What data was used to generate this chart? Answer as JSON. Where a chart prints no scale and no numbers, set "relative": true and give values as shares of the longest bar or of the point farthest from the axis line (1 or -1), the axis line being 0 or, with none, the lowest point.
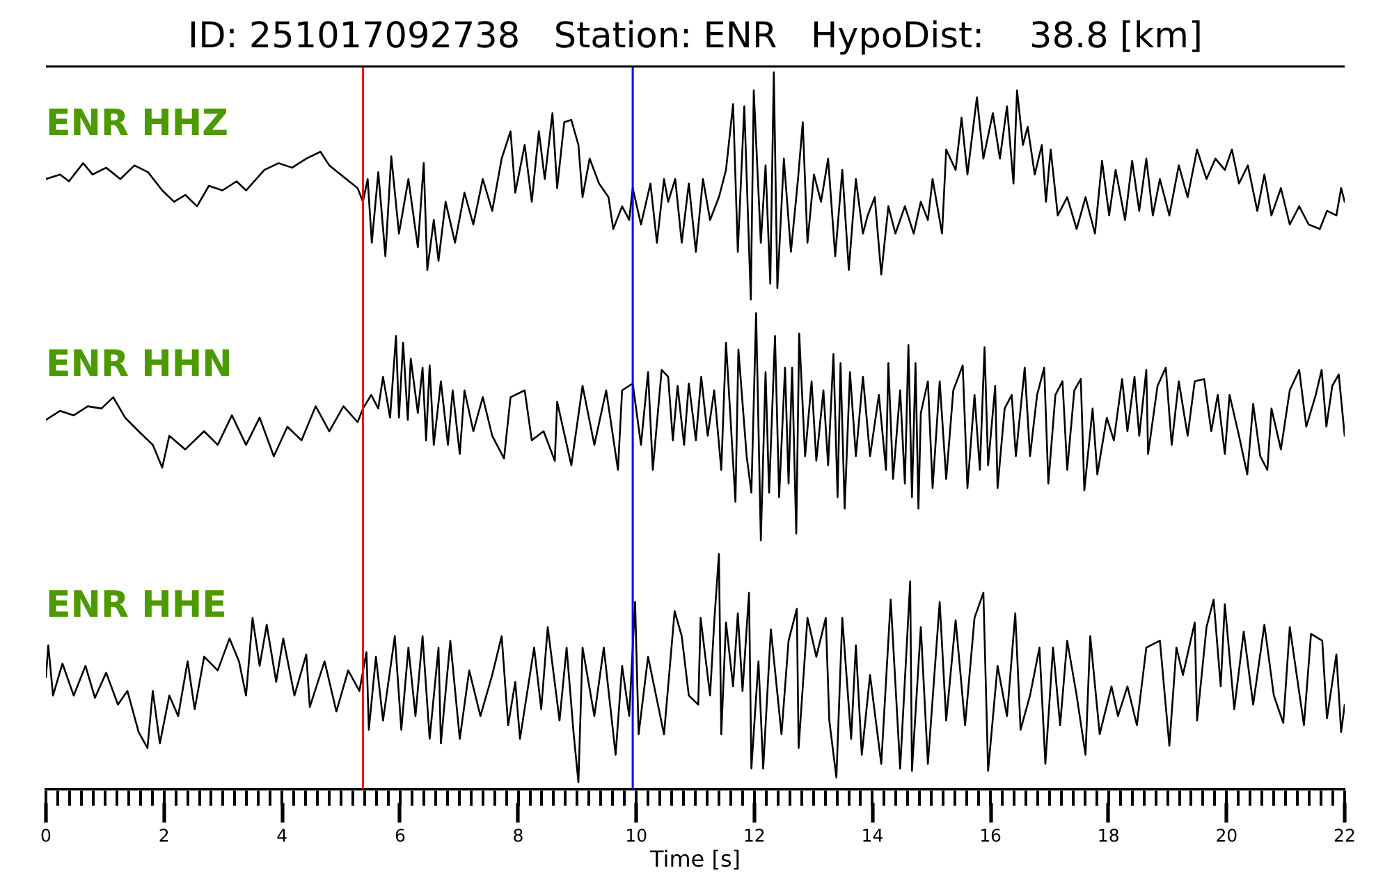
{
  "chart_data": [
    {
      "type": "line",
      "title": "ID: 251017092738   Station: ENR   HypoDist:    38.8 [km]",
      "relative": true,
      "tick_labels": false,
      "xlim": [
        0,
        22
      ],
      "x": [
        0,
        0.24,
        0.39,
        0.63,
        0.79,
        1.02,
        1.26,
        1.5,
        1.73,
        1.97,
        2.17,
        2.36,
        2.56,
        2.76,
        2.99,
        3.23,
        3.39,
        3.7,
        3.94,
        4.17,
        4.41,
        4.65,
        4.8,
        5.04,
        5.28,
        5.37,
        5.45,
        5.52,
        5.63,
        5.75,
        5.85,
        5.98,
        6.14,
        6.3,
        6.4,
        6.46,
        6.57,
        6.65,
        6.77,
        6.93,
        7.09,
        7.24,
        7.4,
        7.56,
        7.72,
        7.87,
        7.95,
        8.11,
        8.23,
        8.35,
        8.45,
        8.58,
        8.66,
        8.78,
        8.9,
        9.02,
        9.09,
        9.21,
        9.37,
        9.53,
        9.61,
        9.76,
        9.88,
        9.94,
        10.08,
        10.24,
        10.35,
        10.47,
        10.54,
        10.66,
        10.77,
        10.89,
        11.01,
        11.13,
        11.25,
        11.4,
        11.52,
        11.64,
        11.72,
        11.83,
        11.94,
        11.99,
        12.11,
        12.19,
        12.27,
        12.33,
        12.39,
        12.5,
        12.62,
        12.74,
        12.82,
        12.9,
        13.01,
        13.13,
        13.25,
        13.37,
        13.49,
        13.6,
        13.72,
        13.84,
        13.92,
        14.04,
        14.15,
        14.27,
        14.39,
        14.55,
        14.7,
        14.82,
        14.94,
        15.02,
        15.18,
        15.25,
        15.41,
        15.51,
        15.61,
        15.77,
        15.88,
        16.04,
        16.16,
        16.28,
        16.39,
        16.45,
        16.55,
        16.63,
        16.75,
        16.87,
        16.94,
        17.02,
        17.14,
        17.3,
        17.46,
        17.61,
        17.77,
        17.89,
        18.01,
        18.12,
        18.28,
        18.4,
        18.52,
        18.64,
        18.75,
        18.87,
        19.03,
        19.19,
        19.34,
        19.5,
        19.66,
        19.81,
        19.97,
        20.09,
        20.21,
        20.36,
        20.52,
        20.64,
        20.76,
        20.92,
        21.07,
        21.23,
        21.39,
        21.58,
        21.7,
        21.86,
        21.94,
        22
      ],
      "series": [
        {
          "name": "ENR HHZ",
          "color": "#000000",
          "values": [
            0.53,
            0.55,
            0.52,
            0.6,
            0.55,
            0.58,
            0.53,
            0.59,
            0.56,
            0.48,
            0.43,
            0.46,
            0.41,
            0.5,
            0.48,
            0.52,
            0.48,
            0.57,
            0.6,
            0.58,
            0.62,
            0.65,
            0.59,
            0.54,
            0.49,
            0.43,
            0.53,
            0.25,
            0.56,
            0.19,
            0.63,
            0.29,
            0.53,
            0.23,
            0.6,
            0.13,
            0.35,
            0.17,
            0.43,
            0.25,
            0.47,
            0.33,
            0.53,
            0.39,
            0.62,
            0.74,
            0.47,
            0.68,
            0.43,
            0.74,
            0.53,
            0.82,
            0.49,
            0.78,
            0.79,
            0.68,
            0.45,
            0.62,
            0.51,
            0.45,
            0.31,
            0.41,
            0.35,
            0.49,
            0.33,
            0.51,
            0.25,
            0.53,
            0.43,
            0.53,
            0.25,
            0.51,
            0.21,
            0.53,
            0.35,
            0.45,
            0.57,
            0.86,
            0.21,
            0.85,
            0,
            0.92,
            0.25,
            0.59,
            0.07,
            1,
            0.05,
            0.62,
            0.21,
            0.53,
            0.78,
            0.25,
            0.55,
            0.43,
            0.62,
            0.19,
            0.57,
            0.13,
            0.53,
            0.29,
            0.37,
            0.45,
            0.11,
            0.41,
            0.29,
            0.41,
            0.29,
            0.43,
            0.35,
            0.53,
            0.29,
            0.66,
            0.57,
            0.8,
            0.55,
            0.89,
            0.62,
            0.82,
            0.62,
            0.85,
            0.51,
            0.92,
            0.68,
            0.76,
            0.55,
            0.68,
            0.43,
            0.66,
            0.37,
            0.45,
            0.31,
            0.45,
            0.29,
            0.61,
            0.37,
            0.57,
            0.35,
            0.61,
            0.39,
            0.62,
            0.37,
            0.53,
            0.37,
            0.59,
            0.45,
            0.66,
            0.53,
            0.62,
            0.57,
            0.66,
            0.51,
            0.59,
            0.39,
            0.55,
            0.37,
            0.49,
            0.33,
            0.41,
            0.33,
            0.31,
            0.39,
            0.37,
            0.49,
            0.43
          ]
        }
      ],
      "ref_lines": [
        {
          "axis": "x",
          "value": 5.37,
          "color": "#ff0000"
        },
        {
          "axis": "x",
          "value": 9.94,
          "color": "#0000ff"
        }
      ]
    },
    {
      "type": "line",
      "relative": true,
      "tick_labels": false,
      "xlim": [
        0,
        22
      ],
      "x": [
        0,
        0.24,
        0.47,
        0.71,
        0.94,
        1.14,
        1.34,
        1.57,
        1.81,
        1.97,
        2.09,
        2.36,
        2.68,
        2.91,
        3.15,
        3.39,
        3.62,
        3.86,
        4.09,
        4.33,
        4.57,
        4.8,
        5.04,
        5.28,
        5.37,
        5.51,
        5.63,
        5.71,
        5.83,
        5.93,
        5.98,
        6.05,
        6.13,
        6.18,
        6.3,
        6.38,
        6.44,
        6.5,
        6.57,
        6.69,
        6.81,
        6.89,
        7.01,
        7.09,
        7.24,
        7.4,
        7.56,
        7.76,
        7.87,
        8.11,
        8.23,
        8.43,
        8.62,
        8.66,
        8.9,
        9.09,
        9.29,
        9.49,
        9.69,
        9.76,
        9.94,
        10.08,
        10.2,
        10.28,
        10.43,
        10.54,
        10.62,
        10.7,
        10.81,
        10.89,
        11.01,
        11.1,
        11.21,
        11.32,
        11.44,
        11.52,
        11.68,
        11.73,
        11.87,
        11.95,
        12.03,
        12.11,
        12.19,
        12.25,
        12.35,
        12.42,
        12.52,
        12.58,
        12.64,
        12.71,
        12.76,
        12.86,
        12.97,
        13.05,
        13.17,
        13.25,
        13.34,
        13.41,
        13.46,
        13.53,
        13.62,
        13.72,
        13.84,
        13.96,
        14.11,
        14.23,
        14.27,
        14.35,
        14.47,
        14.55,
        14.61,
        14.67,
        14.73,
        14.78,
        14.82,
        14.94,
        15.02,
        15.14,
        15.25,
        15.37,
        15.53,
        15.61,
        15.73,
        15.82,
        15.9,
        15.96,
        16.08,
        16.12,
        16.24,
        16.36,
        16.43,
        16.58,
        16.67,
        16.79,
        16.91,
        16.98,
        17.1,
        17.22,
        17.3,
        17.42,
        17.53,
        17.59,
        17.73,
        17.81,
        17.97,
        18.09,
        18.23,
        18.32,
        18.44,
        18.52,
        18.64,
        18.67,
        18.83,
        18.97,
        19.07,
        19.19,
        19.34,
        19.46,
        19.62,
        19.74,
        19.85,
        19.97,
        20.05,
        20.21,
        20.35,
        20.45,
        20.57,
        20.69,
        20.76,
        20.92,
        21.07,
        21.23,
        21.35,
        21.51,
        21.61,
        21.69,
        21.79,
        21.9,
        22
      ],
      "series": [
        {
          "name": "ENR HHN",
          "color": "#000000",
          "values": [
            0.53,
            0.57,
            0.55,
            0.59,
            0.58,
            0.63,
            0.54,
            0.48,
            0.42,
            0.32,
            0.46,
            0.4,
            0.48,
            0.42,
            0.55,
            0.42,
            0.54,
            0.37,
            0.5,
            0.44,
            0.59,
            0.48,
            0.59,
            0.52,
            0.58,
            0.64,
            0.58,
            0.72,
            0.54,
            0.9,
            0.54,
            0.87,
            0.53,
            0.8,
            0.56,
            0.76,
            0.44,
            0.77,
            0.42,
            0.7,
            0.42,
            0.66,
            0.38,
            0.66,
            0.48,
            0.63,
            0.46,
            0.36,
            0.63,
            0.66,
            0.44,
            0.48,
            0.35,
            0.61,
            0.33,
            0.68,
            0.42,
            0.66,
            0.31,
            0.66,
            0.69,
            0.42,
            0.74,
            0.31,
            0.75,
            0.72,
            0.44,
            0.68,
            0.42,
            0.69,
            0.44,
            0.72,
            0.46,
            0.66,
            0.31,
            0.87,
            0.17,
            0.84,
            0.37,
            0.21,
            1,
            0,
            0.74,
            0.21,
            0.9,
            0.19,
            0.76,
            0.25,
            0.76,
            0.03,
            0.91,
            0.37,
            0.7,
            0.35,
            0.66,
            0.33,
            0.82,
            0.19,
            0.78,
            0.14,
            0.74,
            0.37,
            0.72,
            0.37,
            0.64,
            0.31,
            0.78,
            0.27,
            0.66,
            0.25,
            0.86,
            0.19,
            0.78,
            0.14,
            0.56,
            0.7,
            0.23,
            0.7,
            0.27,
            0.66,
            0.77,
            0.23,
            0.64,
            0.31,
            0.85,
            0.33,
            0.68,
            0.23,
            0.58,
            0.64,
            0.37,
            0.76,
            0.37,
            0.64,
            0.76,
            0.25,
            0.64,
            0.7,
            0.31,
            0.66,
            0.71,
            0.22,
            0.58,
            0.29,
            0.54,
            0.44,
            0.71,
            0.48,
            0.72,
            0.46,
            0.75,
            0.38,
            0.68,
            0.76,
            0.42,
            0.7,
            0.46,
            0.7,
            0.71,
            0.48,
            0.64,
            0.38,
            0.64,
            0.46,
            0.29,
            0.6,
            0.37,
            0.31,
            0.58,
            0.4,
            0.66,
            0.75,
            0.5,
            0.64,
            0.75,
            0.5,
            0.68,
            0.73,
            0.46
          ]
        }
      ],
      "ref_lines": [
        {
          "axis": "x",
          "value": 5.37,
          "color": "#ff0000"
        },
        {
          "axis": "x",
          "value": 9.94,
          "color": "#0000ff"
        }
      ]
    },
    {
      "type": "line",
      "xlabel": "Time [s]",
      "relative": true,
      "tick_labels": "x",
      "xlim": [
        0,
        22
      ],
      "xticks": [
        0,
        {
          "value": 0.2,
          "label": null
        },
        {
          "value": 0.4,
          "label": null
        },
        {
          "value": 0.6,
          "label": null
        },
        {
          "value": 0.8,
          "label": null
        },
        {
          "value": 1,
          "label": null
        },
        {
          "value": 1.2,
          "label": null
        },
        {
          "value": 1.4,
          "label": null
        },
        {
          "value": 1.6,
          "label": null
        },
        {
          "value": 1.8,
          "label": null
        },
        2,
        {
          "value": 2.2,
          "label": null
        },
        {
          "value": 2.4,
          "label": null
        },
        {
          "value": 2.6,
          "label": null
        },
        {
          "value": 2.8,
          "label": null
        },
        {
          "value": 3,
          "label": null
        },
        {
          "value": 3.2,
          "label": null
        },
        {
          "value": 3.4,
          "label": null
        },
        {
          "value": 3.6,
          "label": null
        },
        {
          "value": 3.8,
          "label": null
        },
        4,
        {
          "value": 4.2,
          "label": null
        },
        {
          "value": 4.4,
          "label": null
        },
        {
          "value": 4.6,
          "label": null
        },
        {
          "value": 4.8,
          "label": null
        },
        {
          "value": 5,
          "label": null
        },
        {
          "value": 5.2,
          "label": null
        },
        {
          "value": 5.4,
          "label": null
        },
        {
          "value": 5.6,
          "label": null
        },
        {
          "value": 5.8,
          "label": null
        },
        6,
        {
          "value": 6.2,
          "label": null
        },
        {
          "value": 6.4,
          "label": null
        },
        {
          "value": 6.6,
          "label": null
        },
        {
          "value": 6.8,
          "label": null
        },
        {
          "value": 7,
          "label": null
        },
        {
          "value": 7.2,
          "label": null
        },
        {
          "value": 7.4,
          "label": null
        },
        {
          "value": 7.6,
          "label": null
        },
        {
          "value": 7.8,
          "label": null
        },
        8,
        {
          "value": 8.2,
          "label": null
        },
        {
          "value": 8.4,
          "label": null
        },
        {
          "value": 8.6,
          "label": null
        },
        {
          "value": 8.8,
          "label": null
        },
        {
          "value": 9,
          "label": null
        },
        {
          "value": 9.2,
          "label": null
        },
        {
          "value": 9.4,
          "label": null
        },
        {
          "value": 9.6,
          "label": null
        },
        {
          "value": 9.8,
          "label": null
        },
        10,
        {
          "value": 10.2,
          "label": null
        },
        {
          "value": 10.4,
          "label": null
        },
        {
          "value": 10.6,
          "label": null
        },
        {
          "value": 10.8,
          "label": null
        },
        {
          "value": 11,
          "label": null
        },
        {
          "value": 11.2,
          "label": null
        },
        {
          "value": 11.4,
          "label": null
        },
        {
          "value": 11.6,
          "label": null
        },
        {
          "value": 11.8,
          "label": null
        },
        12,
        {
          "value": 12.2,
          "label": null
        },
        {
          "value": 12.4,
          "label": null
        },
        {
          "value": 12.6,
          "label": null
        },
        {
          "value": 12.8,
          "label": null
        },
        {
          "value": 13,
          "label": null
        },
        {
          "value": 13.2,
          "label": null
        },
        {
          "value": 13.4,
          "label": null
        },
        {
          "value": 13.6,
          "label": null
        },
        {
          "value": 13.8,
          "label": null
        },
        14,
        {
          "value": 14.2,
          "label": null
        },
        {
          "value": 14.4,
          "label": null
        },
        {
          "value": 14.6,
          "label": null
        },
        {
          "value": 14.8,
          "label": null
        },
        {
          "value": 15,
          "label": null
        },
        {
          "value": 15.2,
          "label": null
        },
        {
          "value": 15.4,
          "label": null
        },
        {
          "value": 15.6,
          "label": null
        },
        {
          "value": 15.8,
          "label": null
        },
        16,
        {
          "value": 16.2,
          "label": null
        },
        {
          "value": 16.4,
          "label": null
        },
        {
          "value": 16.6,
          "label": null
        },
        {
          "value": 16.8,
          "label": null
        },
        {
          "value": 17,
          "label": null
        },
        {
          "value": 17.2,
          "label": null
        },
        {
          "value": 17.4,
          "label": null
        },
        {
          "value": 17.6,
          "label": null
        },
        {
          "value": 17.8,
          "label": null
        },
        18,
        {
          "value": 18.2,
          "label": null
        },
        {
          "value": 18.4,
          "label": null
        },
        {
          "value": 18.6,
          "label": null
        },
        {
          "value": 18.8,
          "label": null
        },
        {
          "value": 19,
          "label": null
        },
        {
          "value": 19.2,
          "label": null
        },
        {
          "value": 19.4,
          "label": null
        },
        {
          "value": 19.6,
          "label": null
        },
        {
          "value": 19.8,
          "label": null
        },
        20,
        {
          "value": 20.2,
          "label": null
        },
        {
          "value": 20.4,
          "label": null
        },
        {
          "value": 20.6,
          "label": null
        },
        {
          "value": 20.8,
          "label": null
        },
        {
          "value": 21,
          "label": null
        },
        {
          "value": 21.2,
          "label": null
        },
        {
          "value": 21.4,
          "label": null
        },
        {
          "value": 21.6,
          "label": null
        },
        {
          "value": 21.8,
          "label": null
        },
        22
      ],
      "x": [
        0,
        0.04,
        0.12,
        0.28,
        0.47,
        0.67,
        0.83,
        1.02,
        1.22,
        1.38,
        1.57,
        1.72,
        1.81,
        1.93,
        2.09,
        2.24,
        2.4,
        2.52,
        2.68,
        2.91,
        3.11,
        3.27,
        3.39,
        3.5,
        3.62,
        3.74,
        3.9,
        4.02,
        4.21,
        4.41,
        4.47,
        4.72,
        4.92,
        5.12,
        5.31,
        5.43,
        5.47,
        5.59,
        5.71,
        5.91,
        6.02,
        6.14,
        6.26,
        6.38,
        6.5,
        6.65,
        6.69,
        6.85,
        7.01,
        7.17,
        7.36,
        7.56,
        7.72,
        7.83,
        7.95,
        8.03,
        8.27,
        8.39,
        8.5,
        8.7,
        8.82,
        8.94,
        9.02,
        9.09,
        9.29,
        9.45,
        9.65,
        9.76,
        9.88,
        9.98,
        10.04,
        10.2,
        10.47,
        10.65,
        10.77,
        10.89,
        11.05,
        11.09,
        11.25,
        11.32,
        11.4,
        11.44,
        11.52,
        11.64,
        11.72,
        11.8,
        11.91,
        11.95,
        12.07,
        12.15,
        12.28,
        12.46,
        12.58,
        12.72,
        12.75,
        12.9,
        13.05,
        13.21,
        13.27,
        13.39,
        13.49,
        13.64,
        13.72,
        13.82,
        13.96,
        14.15,
        14.31,
        14.47,
        14.64,
        14.67,
        14.82,
        14.94,
        15.14,
        15.25,
        15.41,
        15.57,
        15.73,
        15.88,
        15.96,
        16.12,
        16.28,
        16.42,
        16.51,
        16.67,
        16.83,
        16.93,
        17.06,
        17.18,
        17.3,
        17.46,
        17.61,
        17.69,
        17.85,
        18.05,
        18.16,
        18.32,
        18.48,
        18.64,
        18.87,
        19.03,
        19.15,
        19.26,
        19.46,
        19.5,
        19.66,
        19.78,
        19.9,
        19.97,
        20.13,
        20.29,
        20.45,
        20.64,
        20.8,
        20.96,
        21.07,
        21.31,
        21.43,
        21.62,
        21.7,
        21.86,
        21.94,
        22
      ],
      "series": [
        {
          "name": "ENR HHE",
          "color": "#000000",
          "values": [
            0.46,
            0.6,
            0.38,
            0.52,
            0.38,
            0.51,
            0.37,
            0.48,
            0.34,
            0.4,
            0.22,
            0.15,
            0.4,
            0.17,
            0.38,
            0.29,
            0.53,
            0.32,
            0.55,
            0.49,
            0.63,
            0.53,
            0.38,
            0.72,
            0.51,
            0.69,
            0.44,
            0.63,
            0.38,
            0.56,
            0.33,
            0.53,
            0.31,
            0.49,
            0.4,
            0.57,
            0.23,
            0.55,
            0.27,
            0.64,
            0.23,
            0.59,
            0.29,
            0.64,
            0.19,
            0.59,
            0.17,
            0.62,
            0.19,
            0.49,
            0.29,
            0.47,
            0.64,
            0.25,
            0.44,
            0.19,
            0.59,
            0.32,
            0.68,
            0.27,
            0.59,
            0.21,
            0,
            0.59,
            0.29,
            0.59,
            0.12,
            0.51,
            0.29,
            0.79,
            0.21,
            0.55,
            0.21,
            0.75,
            0.64,
            0.38,
            0.34,
            0.72,
            0.38,
            0.7,
            1,
            0.21,
            0.7,
            0.42,
            0.74,
            0.4,
            0.83,
            0.06,
            0.53,
            0.06,
            0.67,
            0.21,
            0.62,
            0.76,
            0.15,
            0.72,
            0.55,
            0.72,
            0.27,
            0.02,
            0.72,
            0.19,
            0.6,
            0.12,
            0.47,
            0.08,
            0.8,
            0.06,
            0.88,
            0.05,
            0.68,
            0.08,
            0.79,
            0.27,
            0.71,
            0.25,
            0.72,
            0.83,
            0.05,
            0.51,
            0.29,
            0.74,
            0.23,
            0.38,
            0.59,
            0.08,
            0.59,
            0.25,
            0.62,
            0.38,
            0.12,
            0.64,
            0.21,
            0.42,
            0.29,
            0.42,
            0.25,
            0.59,
            0.62,
            0.16,
            0.59,
            0.47,
            0.7,
            0.27,
            0.68,
            0.8,
            0.42,
            0.78,
            0.32,
            0.66,
            0.34,
            0.69,
            0.38,
            0.26,
            0.68,
            0.25,
            0.65,
            0.62,
            0.28,
            0.56,
            0.22,
            0.34
          ]
        }
      ],
      "ref_lines": [
        {
          "axis": "x",
          "value": 5.37,
          "color": "#ff0000"
        },
        {
          "axis": "x",
          "value": 9.94,
          "color": "#0000ff"
        }
      ]
    }
  ]
}
